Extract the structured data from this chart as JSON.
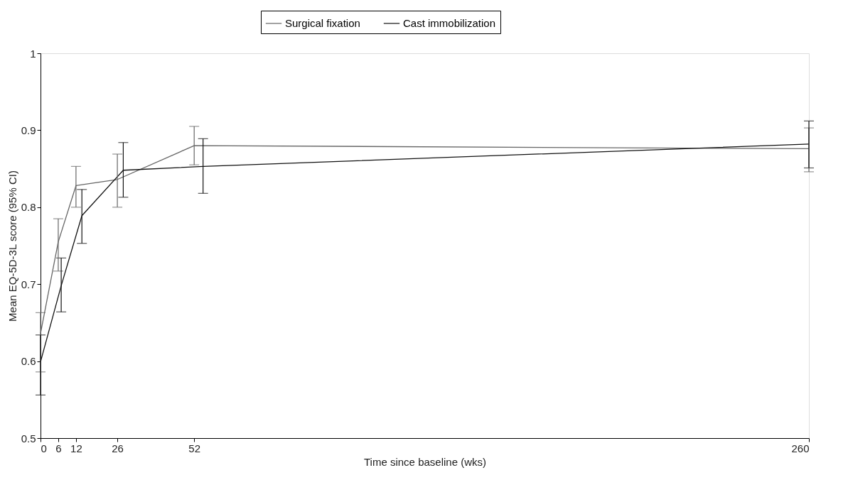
{
  "chart_data": {
    "type": "line",
    "xlabel": "Time since baseline (wks)",
    "ylabel": "Mean EQ-5D-3L score (95% CI)",
    "xlim": [
      0,
      260
    ],
    "xticks": [
      0,
      6,
      12,
      26,
      52,
      260
    ],
    "ylim": [
      0.5,
      1
    ],
    "yticks": [
      0.5,
      0.6,
      0.7,
      0.8,
      0.9,
      1
    ],
    "grid": false,
    "legend": "top",
    "marker": "none",
    "series": [
      {
        "name": "Surgical fixation",
        "color": "#666666",
        "line_style": "solid",
        "x": [
          0,
          6,
          12,
          26,
          52,
          260
        ],
        "values": [
          0.636,
          0.755,
          0.828,
          0.836,
          0.88,
          0.876
        ],
        "errors": [
          [
            0.586,
            0.663
          ],
          [
            0.717,
            0.785
          ],
          [
            0.8,
            0.853
          ],
          [
            0.8,
            0.869
          ],
          [
            0.855,
            0.905
          ],
          [
            0.846,
            0.903
          ]
        ]
      },
      {
        "name": "Cast immobilization",
        "color": "#111111",
        "line_style": "solid",
        "x": [
          0,
          7,
          14,
          28,
          55,
          260
        ],
        "values": [
          0.599,
          0.698,
          0.789,
          0.848,
          0.853,
          0.882
        ],
        "errors": [
          [
            0.556,
            0.634
          ],
          [
            0.664,
            0.734
          ],
          [
            0.753,
            0.823
          ],
          [
            0.813,
            0.884
          ],
          [
            0.818,
            0.889
          ],
          [
            0.851,
            0.912
          ]
        ]
      }
    ]
  }
}
